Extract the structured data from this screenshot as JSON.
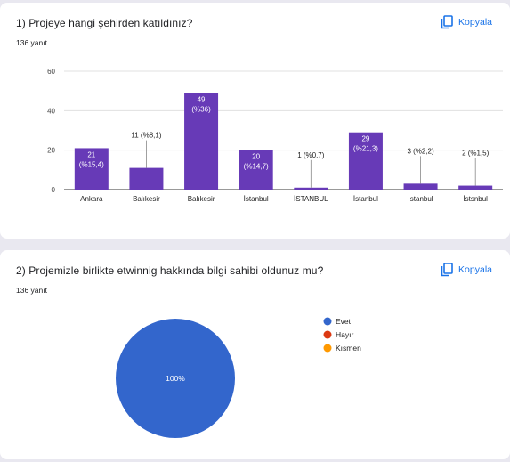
{
  "questions": [
    {
      "title": "1) Projeye hangi şehirden katıldınız?",
      "response_count": "136 yanıt",
      "copy_label": "Kopyala"
    },
    {
      "title": "2) Projemizle birlikte etwinnig hakkında bilgi sahibi oldunuz mu?",
      "response_count": "136 yanıt",
      "copy_label": "Kopyala"
    }
  ],
  "icons": {
    "copy": "copy-icon"
  },
  "colors": {
    "bar": "#673ab7",
    "accent": "#1a73e8",
    "evet": "#3366cc",
    "hayir": "#dc3912",
    "kismen": "#ff9900"
  },
  "chart_data": [
    {
      "type": "bar",
      "categories": [
        "Ankara",
        "Balıkesir",
        "Balıkesir",
        "İstanbul",
        "İSTANBUL",
        "İstanbul",
        "İstanbul",
        "İstsnbul"
      ],
      "values": [
        21,
        11,
        49,
        20,
        1,
        29,
        3,
        2
      ],
      "labels": [
        "21\n(%15,4)",
        "11 (%8,1)",
        "49\n(%36)",
        "20\n(%14,7)",
        "1 (%0,7)",
        "29\n(%21,3)",
        "3 (%2,2)",
        "2 (%1,5)"
      ],
      "yticks": [
        "0",
        "20",
        "40",
        "60"
      ],
      "ylim": [
        0,
        60
      ],
      "grid": true
    },
    {
      "type": "pie",
      "categories": [
        "Evet",
        "Hayır",
        "Kısmen"
      ],
      "values": [
        100,
        0,
        0
      ],
      "slice_label": "100%",
      "colors": [
        "#3366cc",
        "#dc3912",
        "#ff9900"
      ],
      "legend": "right"
    }
  ]
}
